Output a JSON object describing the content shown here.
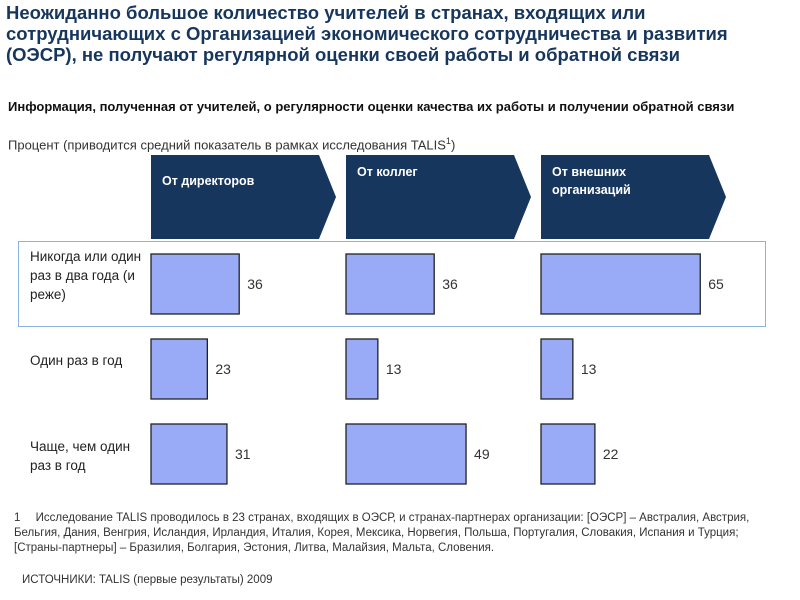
{
  "title": "Неожиданно большое количество учителей в странах, входящих или сотрудничающих с Организацией экономического сотрудничества и развития (ОЭСР), не получают регулярной оценки своей работы и обратной связи",
  "subtitle": "Информация, полученная от учителей, о регулярности оценки качества их работы и получении обратной связи",
  "note": {
    "text": "Процент (приводится средний показатель в рамках исследования TALIS",
    "sup": "1",
    "close": ")"
  },
  "footnote": {
    "marker": "1",
    "text": "Исследование TALIS проводилось в 23 странах, входящих в ОЭСР, и странах-партнерах организации: [ОЭСР] – Австралия, Австрия, Бельгия, Дания, Венгрия, Исландия, Ирландия, Италия, Корея, Мексика, Норвегия, Польша, Португалия, Словакия, Испания и Турция; [Страны-партнеры] – Бразилия, Болгария, Эстония, Литва, Малайзия, Мальта, Словения."
  },
  "sources": "ИСТОЧНИКИ:  TALIS (первые результаты) 2009",
  "colors": {
    "title": "#17365d",
    "header": "#17365d",
    "bar": "#99aaf7",
    "highlight": "#8db3e2"
  },
  "chart_data": {
    "type": "bar",
    "orientation": "horizontal",
    "categories": [
      "Никогда или один раз в два года (и реже)",
      "Один раз в год",
      "Чаще, чем один раз в год"
    ],
    "series": [
      {
        "name": "От директоров",
        "values": [
          36,
          23,
          31
        ]
      },
      {
        "name": "От коллег",
        "values": [
          36,
          13,
          49
        ]
      },
      {
        "name": "От внешних организаций",
        "values": [
          65,
          13,
          22
        ]
      }
    ],
    "unit": "%",
    "grid": false
  }
}
